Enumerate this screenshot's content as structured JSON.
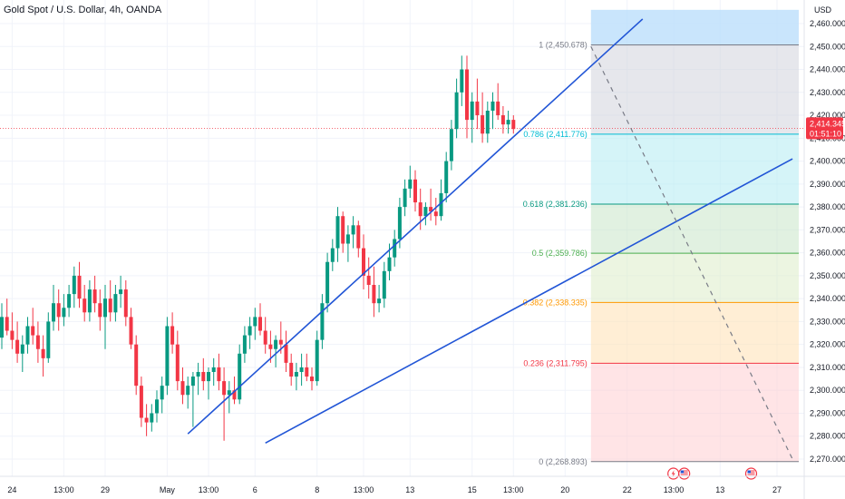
{
  "header": {
    "title": "Gold Spot / U.S. Dollar, 4h, OANDA"
  },
  "currency": "USD",
  "price_tag": {
    "price": "2,414.345",
    "countdown": "01:51:10",
    "color": "#f23645"
  },
  "colors": {
    "up": "#089981",
    "down": "#f23645",
    "trend": "#2155d6",
    "grid": "#f0f3fa"
  },
  "chart_data": {
    "type": "candlestick",
    "title": "Gold Spot / U.S. Dollar, 4h, OANDA",
    "ylabel": "USD",
    "ylim": [
      2265,
      2465
    ],
    "y_ticks": [
      2270,
      2280,
      2290,
      2300,
      2310,
      2320,
      2330,
      2340,
      2350,
      2360,
      2370,
      2380,
      2390,
      2400,
      2410,
      2420,
      2430,
      2440,
      2450,
      2460
    ],
    "y_tick_labels": [
      "2,270.000",
      "2,280.000",
      "2,290.000",
      "2,300.000",
      "2,310.000",
      "2,320.000",
      "2,330.000",
      "2,340.000",
      "2,350.000",
      "2,360.000",
      "2,370.000",
      "2,380.000",
      "2,390.000",
      "2,400.000",
      "2,410.000",
      "2,420.000",
      "2,430.000",
      "2,440.000",
      "2,450.000",
      "2,460.000"
    ],
    "x_ticks": [
      {
        "label": "24",
        "bar": 2
      },
      {
        "label": "13:00",
        "bar": 12
      },
      {
        "label": "29",
        "bar": 20
      },
      {
        "label": "May",
        "bar": 32
      },
      {
        "label": "13:00",
        "bar": 40
      },
      {
        "label": "6",
        "bar": 49
      },
      {
        "label": "8",
        "bar": 61
      },
      {
        "label": "13:00",
        "bar": 70
      },
      {
        "label": "13",
        "bar": 79
      },
      {
        "label": "15",
        "bar": 91
      },
      {
        "label": "13:00",
        "bar": 99
      },
      {
        "label": "20",
        "bar": 109
      },
      {
        "label": "22",
        "bar": 121
      },
      {
        "label": "13:00",
        "bar": 130
      },
      {
        "label": "13",
        "bar": 139
      },
      {
        "label": "27",
        "bar": 150
      }
    ],
    "candles": [
      [
        2323,
        2338,
        2318,
        2332
      ],
      [
        2332,
        2340,
        2324,
        2326
      ],
      [
        2326,
        2334,
        2318,
        2322
      ],
      [
        2322,
        2330,
        2312,
        2316
      ],
      [
        2316,
        2324,
        2308,
        2320
      ],
      [
        2320,
        2332,
        2316,
        2328
      ],
      [
        2328,
        2336,
        2320,
        2324
      ],
      [
        2324,
        2330,
        2312,
        2318
      ],
      [
        2318,
        2324,
        2306,
        2314
      ],
      [
        2314,
        2334,
        2312,
        2330
      ],
      [
        2330,
        2346,
        2326,
        2338
      ],
      [
        2338,
        2344,
        2326,
        2332
      ],
      [
        2332,
        2342,
        2328,
        2336
      ],
      [
        2336,
        2346,
        2332,
        2342
      ],
      [
        2342,
        2354,
        2336,
        2350
      ],
      [
        2350,
        2356,
        2336,
        2340
      ],
      [
        2340,
        2346,
        2330,
        2334
      ],
      [
        2334,
        2348,
        2330,
        2344
      ],
      [
        2344,
        2350,
        2334,
        2338
      ],
      [
        2338,
        2344,
        2326,
        2332
      ],
      [
        2332,
        2346,
        2318,
        2340
      ],
      [
        2340,
        2348,
        2330,
        2334
      ],
      [
        2334,
        2346,
        2330,
        2342
      ],
      [
        2342,
        2350,
        2336,
        2344
      ],
      [
        2344,
        2348,
        2328,
        2332
      ],
      [
        2332,
        2336,
        2318,
        2320
      ],
      [
        2320,
        2324,
        2298,
        2302
      ],
      [
        2302,
        2306,
        2284,
        2288
      ],
      [
        2288,
        2294,
        2280,
        2286
      ],
      [
        2286,
        2294,
        2282,
        2290
      ],
      [
        2290,
        2300,
        2286,
        2296
      ],
      [
        2296,
        2306,
        2290,
        2302
      ],
      [
        2302,
        2332,
        2298,
        2328
      ],
      [
        2328,
        2334,
        2316,
        2320
      ],
      [
        2320,
        2326,
        2300,
        2304
      ],
      [
        2304,
        2310,
        2294,
        2298
      ],
      [
        2298,
        2306,
        2292,
        2302
      ],
      [
        2302,
        2308,
        2284,
        2306
      ],
      [
        2306,
        2312,
        2298,
        2308
      ],
      [
        2308,
        2314,
        2300,
        2304
      ],
      [
        2304,
        2310,
        2296,
        2308
      ],
      [
        2308,
        2314,
        2302,
        2310
      ],
      [
        2310,
        2316,
        2300,
        2304
      ],
      [
        2304,
        2310,
        2278,
        2298
      ],
      [
        2298,
        2304,
        2290,
        2300
      ],
      [
        2300,
        2306,
        2294,
        2296
      ],
      [
        2296,
        2320,
        2294,
        2316
      ],
      [
        2316,
        2328,
        2312,
        2324
      ],
      [
        2324,
        2332,
        2318,
        2328
      ],
      [
        2328,
        2336,
        2322,
        2332
      ],
      [
        2332,
        2338,
        2324,
        2326
      ],
      [
        2326,
        2332,
        2316,
        2320
      ],
      [
        2320,
        2326,
        2312,
        2318
      ],
      [
        2318,
        2324,
        2310,
        2322
      ],
      [
        2322,
        2330,
        2316,
        2320
      ],
      [
        2320,
        2326,
        2308,
        2312
      ],
      [
        2312,
        2316,
        2302,
        2306
      ],
      [
        2306,
        2312,
        2300,
        2308
      ],
      [
        2308,
        2316,
        2302,
        2310
      ],
      [
        2310,
        2316,
        2304,
        2306
      ],
      [
        2306,
        2310,
        2300,
        2304
      ],
      [
        2304,
        2326,
        2302,
        2322
      ],
      [
        2322,
        2342,
        2318,
        2338
      ],
      [
        2338,
        2360,
        2334,
        2356
      ],
      [
        2356,
        2366,
        2352,
        2362
      ],
      [
        2362,
        2380,
        2356,
        2376
      ],
      [
        2376,
        2378,
        2360,
        2364
      ],
      [
        2364,
        2372,
        2356,
        2368
      ],
      [
        2368,
        2376,
        2362,
        2372
      ],
      [
        2372,
        2374,
        2358,
        2362
      ],
      [
        2362,
        2368,
        2344,
        2350
      ],
      [
        2350,
        2358,
        2340,
        2346
      ],
      [
        2346,
        2354,
        2332,
        2338
      ],
      [
        2338,
        2346,
        2334,
        2340
      ],
      [
        2340,
        2356,
        2336,
        2352
      ],
      [
        2352,
        2364,
        2348,
        2358
      ],
      [
        2358,
        2370,
        2354,
        2366
      ],
      [
        2366,
        2384,
        2362,
        2380
      ],
      [
        2380,
        2392,
        2376,
        2388
      ],
      [
        2388,
        2398,
        2384,
        2392
      ],
      [
        2392,
        2396,
        2378,
        2382
      ],
      [
        2382,
        2388,
        2370,
        2376
      ],
      [
        2376,
        2382,
        2372,
        2380
      ],
      [
        2380,
        2388,
        2374,
        2378
      ],
      [
        2378,
        2384,
        2372,
        2376
      ],
      [
        2376,
        2392,
        2374,
        2386
      ],
      [
        2386,
        2404,
        2382,
        2400
      ],
      [
        2400,
        2418,
        2396,
        2414
      ],
      [
        2414,
        2436,
        2410,
        2430
      ],
      [
        2430,
        2446,
        2424,
        2440
      ],
      [
        2440,
        2446,
        2410,
        2418
      ],
      [
        2418,
        2430,
        2408,
        2426
      ],
      [
        2426,
        2436,
        2414,
        2420
      ],
      [
        2420,
        2430,
        2408,
        2412
      ],
      [
        2412,
        2426,
        2408,
        2422
      ],
      [
        2422,
        2430,
        2414,
        2426
      ],
      [
        2426,
        2434,
        2418,
        2420
      ],
      [
        2420,
        2424,
        2412,
        2416
      ],
      [
        2416,
        2422,
        2412,
        2418
      ],
      [
        2418,
        2420,
        2412,
        2414
      ]
    ],
    "candle_start_bar": 0,
    "current_price": 2414.345,
    "fibonacci": {
      "start_bar": 114,
      "end_bar": 153,
      "levels": [
        {
          "label": "1 (2,450.678)",
          "ratio": 1,
          "price": 2450.678,
          "line": "#787b86",
          "fill": "#d1d4dc"
        },
        {
          "label": "0.786 (2,411.776)",
          "ratio": 0.786,
          "price": 2411.776,
          "line": "#00bcd4",
          "fill": "#b2ebf2"
        },
        {
          "label": "0.618 (2,381.236)",
          "ratio": 0.618,
          "price": 2381.236,
          "line": "#089981",
          "fill": "#c8e6c9"
        },
        {
          "label": "0.5 (2,359.786)",
          "ratio": 0.5,
          "price": 2359.786,
          "line": "#4caf50",
          "fill": "#dcedc8"
        },
        {
          "label": "0.382 (2,338.335)",
          "ratio": 0.382,
          "price": 2338.335,
          "line": "#ff9800",
          "fill": "#ffe0b2"
        },
        {
          "label": "0.236 (2,311.795)",
          "ratio": 0.236,
          "price": 2311.795,
          "line": "#f23645",
          "fill": "#ffcdd2"
        },
        {
          "label": "0 (2,268.893)",
          "ratio": 0,
          "price": 2268.893,
          "line": "#787b86",
          "fill": "#ffcdd2"
        }
      ],
      "top_fill": "#bbdefb",
      "top_fill_price": 2466
    },
    "trend_lines": [
      {
        "name": "",
        "from": [
          36,
          2281
        ],
        "to": [
          124,
          2462
        ]
      },
      {
        "name": "",
        "from": [
          51,
          2277
        ],
        "to": [
          153,
          2401
        ]
      }
    ],
    "projection_line": {
      "from": [
        114,
        2450
      ],
      "to": [
        153,
        2270
      ]
    },
    "event_markers": [
      {
        "bar": 131,
        "icons": [
          "lightning",
          "us-flag"
        ]
      },
      {
        "bar": 145,
        "icons": [
          "us-flag"
        ]
      }
    ]
  }
}
